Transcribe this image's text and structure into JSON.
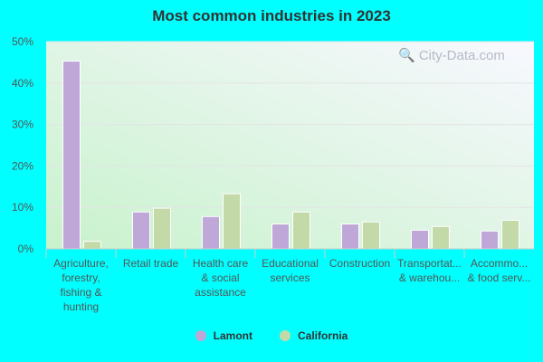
{
  "chart_data": {
    "type": "bar",
    "title": "Most common industries in 2023",
    "categories": [
      [
        "Agriculture,",
        "forestry,",
        "fishing &",
        "hunting"
      ],
      [
        "Retail trade"
      ],
      [
        "Health care",
        "& social",
        "assistance"
      ],
      [
        "Educational",
        "services"
      ],
      [
        "Construction"
      ],
      [
        "Transportat...",
        "& warehou..."
      ],
      [
        "Accommo...",
        "& food serv..."
      ]
    ],
    "series": [
      {
        "name": "Lamont",
        "color": "#bfa8d8",
        "values": [
          45.3,
          8.9,
          7.8,
          6.0,
          6.0,
          4.5,
          4.3
        ]
      },
      {
        "name": "California",
        "color": "#c4d9a8",
        "values": [
          1.8,
          9.8,
          13.3,
          8.9,
          6.5,
          5.4,
          6.9
        ]
      }
    ],
    "ylim": [
      0,
      50
    ],
    "yticks": [
      "0%",
      "10%",
      "20%",
      "30%",
      "40%",
      "50%"
    ],
    "grid": true,
    "legend": "bottom"
  },
  "watermark": "City-Data.com"
}
